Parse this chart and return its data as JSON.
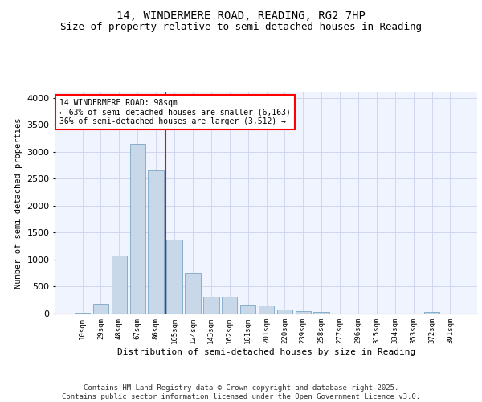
{
  "title": "14, WINDERMERE ROAD, READING, RG2 7HP",
  "subtitle": "Size of property relative to semi-detached houses in Reading",
  "xlabel": "Distribution of semi-detached houses by size in Reading",
  "ylabel": "Number of semi-detached properties",
  "categories": [
    "10sqm",
    "29sqm",
    "48sqm",
    "67sqm",
    "86sqm",
    "105sqm",
    "124sqm",
    "143sqm",
    "162sqm",
    "181sqm",
    "201sqm",
    "220sqm",
    "239sqm",
    "258sqm",
    "277sqm",
    "296sqm",
    "315sqm",
    "334sqm",
    "353sqm",
    "372sqm",
    "391sqm"
  ],
  "values": [
    20,
    175,
    1080,
    3150,
    2650,
    1370,
    750,
    320,
    310,
    160,
    145,
    70,
    40,
    30,
    5,
    0,
    0,
    0,
    0,
    25,
    0
  ],
  "bar_color": "#c8d8e8",
  "bar_edge_color": "#6699bb",
  "vline_x": 4.5,
  "vline_color": "red",
  "annotation_text": "14 WINDERMERE ROAD: 98sqm\n← 63% of semi-detached houses are smaller (6,163)\n36% of semi-detached houses are larger (3,512) →",
  "annotation_box_color": "white",
  "annotation_box_edge": "red",
  "grid_color": "#d0d8f0",
  "bg_color": "#f0f4ff",
  "footer": "Contains HM Land Registry data © Crown copyright and database right 2025.\nContains public sector information licensed under the Open Government Licence v3.0.",
  "ylim": [
    0,
    4100
  ],
  "title_fontsize": 10,
  "subtitle_fontsize": 9,
  "footer_fontsize": 6.5
}
